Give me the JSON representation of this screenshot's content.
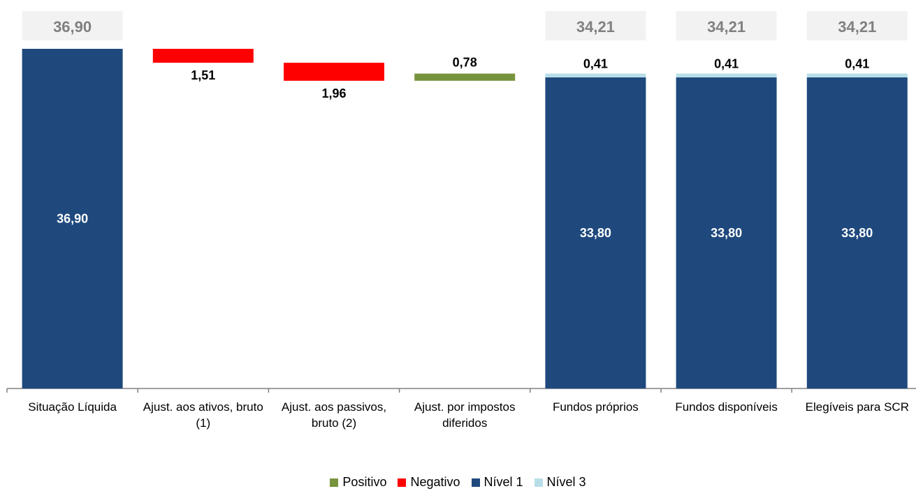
{
  "chart_data": {
    "type": "bar",
    "subtype": "waterfall",
    "categories": [
      [
        "Situação Líquida"
      ],
      [
        "Ajust. aos ativos, bruto",
        "(1)"
      ],
      [
        "Ajust. aos passivos,",
        "bruto (2)"
      ],
      [
        "Ajust. por impostos",
        "diferidos"
      ],
      [
        "Fundos próprios"
      ],
      [
        "Fundos disponíveis"
      ],
      [
        "Elegíveis para SCR"
      ]
    ],
    "bars": [
      {
        "kind": "total",
        "nivel1": 36.9,
        "nivel3": 0,
        "total": "36,90",
        "nivel1_label": "36,90",
        "nivel3_label": ""
      },
      {
        "kind": "delta",
        "sign": "negativo",
        "from": 36.9,
        "to": 35.39,
        "label": "1,51"
      },
      {
        "kind": "delta",
        "sign": "negativo",
        "from": 35.39,
        "to": 33.43,
        "label": "1,96"
      },
      {
        "kind": "delta",
        "sign": "positivo",
        "from": 33.43,
        "to": 34.21,
        "label": "0,78"
      },
      {
        "kind": "total",
        "nivel1": 33.8,
        "nivel3": 0.41,
        "total": "34,21",
        "nivel1_label": "33,80",
        "nivel3_label": "0,41"
      },
      {
        "kind": "total",
        "nivel1": 33.8,
        "nivel3": 0.41,
        "total": "34,21",
        "nivel1_label": "33,80",
        "nivel3_label": "0,41"
      },
      {
        "kind": "total",
        "nivel1": 33.8,
        "nivel3": 0.41,
        "total": "34,21",
        "nivel1_label": "33,80",
        "nivel3_label": "0,41"
      }
    ],
    "series": [
      {
        "name": "Positivo",
        "color": "#77933c"
      },
      {
        "name": "Negativo",
        "color": "#ff0000"
      },
      {
        "name": "Nível 1",
        "color": "#1f497d"
      },
      {
        "name": "Nível 3",
        "color": "#b7dee8"
      }
    ],
    "ylim": [
      0,
      36.9
    ],
    "grid": false,
    "legend_position": "bottom"
  }
}
